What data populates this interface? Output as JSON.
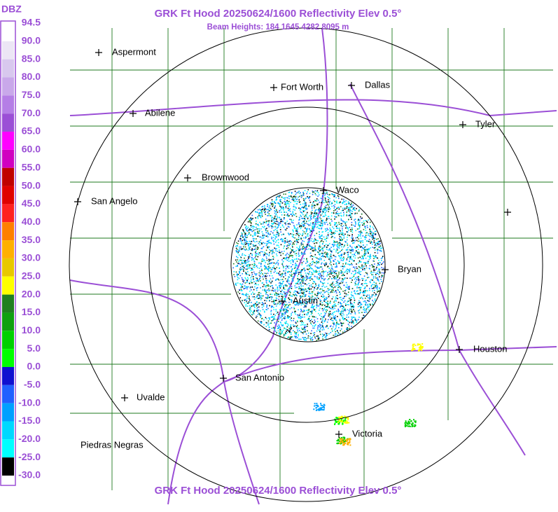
{
  "header": {
    "title": "GRK Ft Hood 20250624/1600 Reflectivity Elev 0.5°",
    "subtitle": "Beam Heights: 184 1645 4282 8095 m"
  },
  "footer": {
    "title": "GRK Ft Hood 20250624/1600 Reflectivity Elev 0.5°"
  },
  "legend": {
    "unit": "DBZ",
    "labels": [
      "94.5",
      "90.0",
      "85.0",
      "80.0",
      "75.0",
      "70.0",
      "65.0",
      "60.0",
      "55.0",
      "50.0",
      "45.0",
      "40.0",
      "35.0",
      "30.0",
      "25.0",
      "20.0",
      "15.0",
      "10.0",
      "5.0",
      "0.0",
      "-5.0",
      "-10.0",
      "-15.0",
      "-20.0",
      "-25.0",
      "-30.0"
    ]
  },
  "cities": [
    {
      "label": "Aspermont"
    },
    {
      "label": "Fort Worth"
    },
    {
      "label": "Dallas"
    },
    {
      "label": "Abilene"
    },
    {
      "label": "Tyler"
    },
    {
      "label": "Brownwood"
    },
    {
      "label": "Waco"
    },
    {
      "label": "San Angelo"
    },
    {
      "label": "Bryan"
    },
    {
      "label": "Austin"
    },
    {
      "label": "Houston"
    },
    {
      "label": "San Antonio"
    },
    {
      "label": "Uvalde"
    },
    {
      "label": "Victoria"
    },
    {
      "label": "Piedras Negras"
    }
  ]
}
